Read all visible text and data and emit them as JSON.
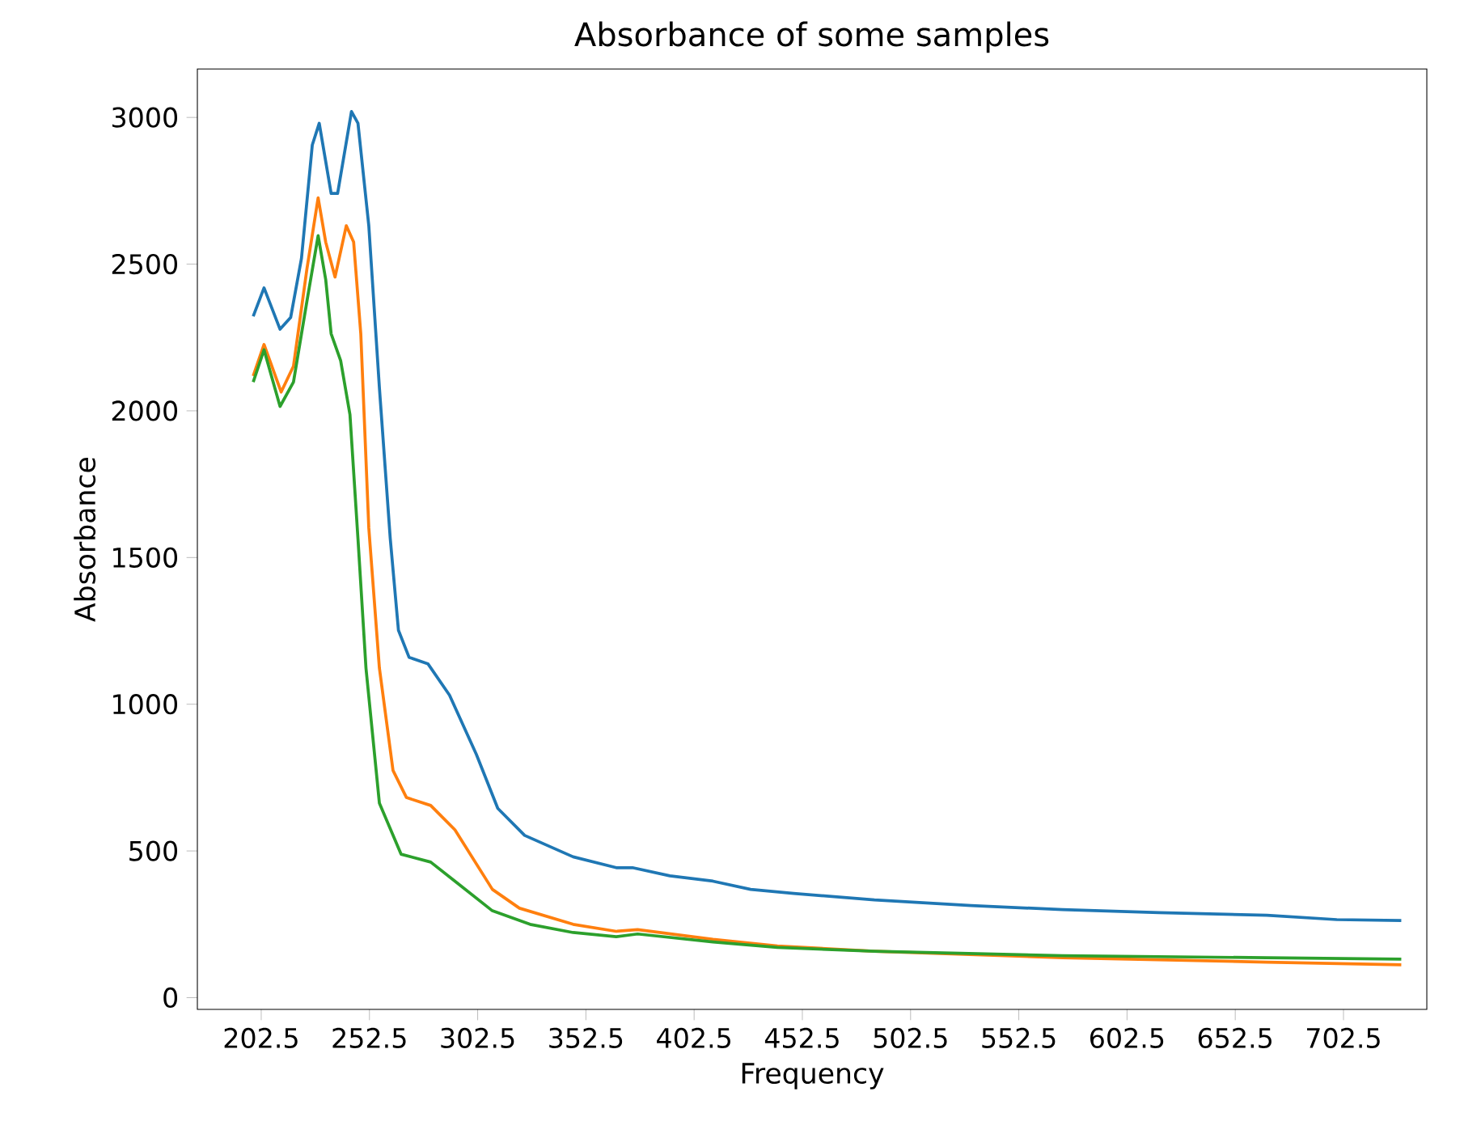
{
  "chart_data": {
    "type": "line",
    "title": "Absorbance of some samples",
    "xlabel": "Frequency",
    "ylabel": "Absorbance",
    "xlim": [
      173,
      741
    ],
    "ylim": [
      -40,
      3165
    ],
    "xticks": [
      202.5,
      252.5,
      302.5,
      352.5,
      402.5,
      452.5,
      502.5,
      552.5,
      602.5,
      652.5,
      702.5
    ],
    "yticks": [
      0,
      500,
      1000,
      1500,
      2000,
      2500,
      3000
    ],
    "marker": "none",
    "line_style": "solid",
    "series": [
      {
        "color": "#1f77b4",
        "x": [
          198.8,
          203.8,
          211.2,
          216.1,
          221.1,
          226.1,
          229.3,
          234.8,
          237.8,
          244.2,
          247.2,
          252.2,
          257.1,
          262.1,
          265.9,
          270.8,
          279.5,
          289.5,
          301.9,
          311.8,
          324.2,
          346.6,
          366.5,
          374,
          391.3,
          411.2,
          428.6,
          448.5,
          485.8,
          530.5,
          572.7,
          617.4,
          667.1,
          699.4,
          729.2
        ],
        "values": [
          2322,
          2419,
          2278,
          2318,
          2520,
          2906,
          2980,
          2741,
          2741,
          3020,
          2980,
          2631,
          2079,
          1566,
          1252,
          1160,
          1138,
          1031,
          829,
          645,
          553,
          480,
          443,
          443,
          415,
          397,
          369,
          355,
          333,
          314,
          300,
          290,
          281,
          266,
          263
        ]
      },
      {
        "color": "#ff7f0e",
        "x": [
          198.8,
          203.8,
          211.7,
          217.4,
          223.6,
          228.8,
          232.3,
          236.6,
          241.8,
          245.2,
          248.5,
          252.2,
          257.1,
          263.4,
          269.6,
          280.8,
          292,
          309.3,
          321.8,
          346.6,
          366.5,
          376.4,
          411.2,
          441,
          485.8,
          572.7,
          667.1,
          729.2
        ],
        "values": [
          2119,
          2226,
          2064,
          2152,
          2483,
          2726,
          2575,
          2456,
          2631,
          2575,
          2263,
          1601,
          1123,
          774,
          682,
          655,
          572,
          369,
          305,
          250,
          226,
          232,
          199,
          176,
          158,
          136,
          121,
          112
        ]
      },
      {
        "color": "#2ca02c",
        "x": [
          198.8,
          203.8,
          211.2,
          217.4,
          223.6,
          228.8,
          232.3,
          234.8,
          239.2,
          243.5,
          247.2,
          250.9,
          257.1,
          267.1,
          280.8,
          292,
          309.3,
          326.7,
          346.6,
          366.5,
          376.4,
          411.2,
          441,
          485.8,
          572.7,
          667.1,
          729.2
        ],
        "values": [
          2098,
          2208,
          2015,
          2098,
          2373,
          2597,
          2447,
          2263,
          2171,
          1987,
          1564,
          1123,
          663,
          489,
          462,
          397,
          296,
          250,
          222,
          208,
          217,
          190,
          171,
          158,
          143,
          136,
          131
        ]
      }
    ]
  }
}
